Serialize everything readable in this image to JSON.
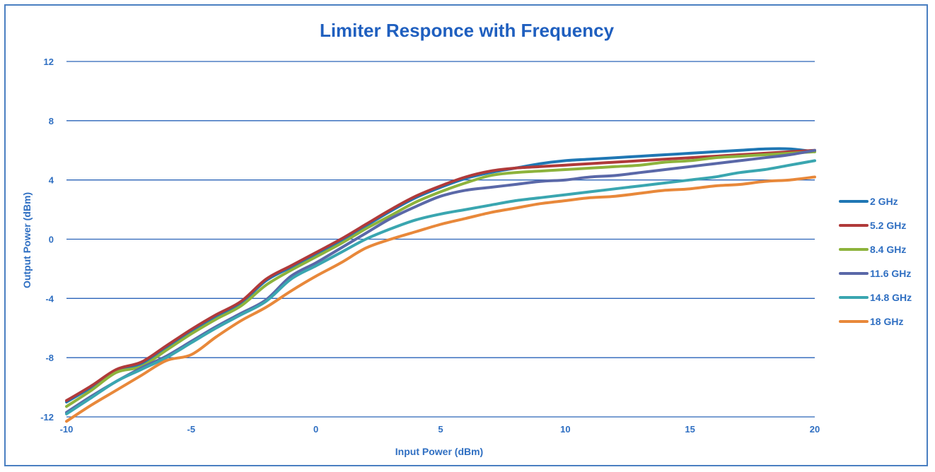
{
  "chart_data": {
    "type": "line",
    "title": "Limiter Responce with Frequency",
    "xlabel": "Input Power (dBm)",
    "ylabel": "Output Power (dBm)",
    "xlim": [
      -10,
      20
    ],
    "ylim": [
      -12,
      12
    ],
    "xticks": [
      -10,
      -5,
      0,
      5,
      10,
      15,
      20
    ],
    "yticks": [
      -12,
      -8,
      -4,
      0,
      4,
      8,
      12
    ],
    "x_tick_labels": [
      "-10",
      "-5",
      "0",
      "5",
      "10",
      "15",
      "20"
    ],
    "y_tick_labels": [
      "-12",
      "-8",
      "-4",
      "0",
      "4",
      "8",
      "12"
    ],
    "grid": "horizontal",
    "legend_position": "right",
    "x": [
      -10,
      -9,
      -8,
      -7,
      -6,
      -5,
      -4,
      -3,
      -2,
      -1,
      0,
      1,
      2,
      3,
      4,
      5,
      6,
      7,
      8,
      9,
      10,
      11,
      12,
      13,
      14,
      15,
      16,
      17,
      18,
      19,
      20
    ],
    "series": [
      {
        "name": "2 GHz",
        "color": "#1f77b4",
        "values": [
          -11.0,
          -10.0,
          -8.9,
          -8.4,
          -7.3,
          -6.2,
          -5.2,
          -4.3,
          -2.8,
          -1.9,
          -1.0,
          -0.1,
          0.9,
          1.9,
          2.8,
          3.5,
          4.1,
          4.5,
          4.8,
          5.1,
          5.3,
          5.4,
          5.5,
          5.6,
          5.7,
          5.8,
          5.9,
          6.0,
          6.1,
          6.1,
          5.9
        ]
      },
      {
        "name": "5.2 GHz",
        "color": "#b03a3a",
        "values": [
          -10.9,
          -9.9,
          -8.8,
          -8.3,
          -7.2,
          -6.1,
          -5.1,
          -4.2,
          -2.7,
          -1.8,
          -0.9,
          0.0,
          1.0,
          2.0,
          2.9,
          3.6,
          4.2,
          4.6,
          4.8,
          4.9,
          5.0,
          5.1,
          5.2,
          5.3,
          5.4,
          5.5,
          5.6,
          5.7,
          5.8,
          5.9,
          6.0
        ]
      },
      {
        "name": "8.4 GHz",
        "color": "#8db33c",
        "values": [
          -11.3,
          -10.2,
          -9.0,
          -8.6,
          -7.5,
          -6.4,
          -5.4,
          -4.5,
          -3.1,
          -2.1,
          -1.2,
          -0.3,
          0.7,
          1.6,
          2.5,
          3.2,
          3.8,
          4.3,
          4.5,
          4.6,
          4.7,
          4.8,
          4.9,
          5.0,
          5.2,
          5.3,
          5.5,
          5.6,
          5.7,
          5.8,
          5.9
        ]
      },
      {
        "name": "11.6 GHz",
        "color": "#5a68a8",
        "values": [
          -11.7,
          -10.6,
          -9.6,
          -8.7,
          -7.9,
          -6.9,
          -5.9,
          -5.0,
          -4.1,
          -2.5,
          -1.6,
          -0.6,
          0.4,
          1.4,
          2.2,
          2.9,
          3.3,
          3.5,
          3.7,
          3.9,
          4.0,
          4.2,
          4.3,
          4.5,
          4.7,
          4.9,
          5.1,
          5.3,
          5.5,
          5.7,
          6.0
        ]
      },
      {
        "name": "14.8 GHz",
        "color": "#3aa6b0",
        "values": [
          -11.8,
          -10.7,
          -9.6,
          -8.8,
          -8.0,
          -7.0,
          -6.0,
          -5.1,
          -4.2,
          -2.7,
          -1.8,
          -0.9,
          0.0,
          0.7,
          1.3,
          1.7,
          2.0,
          2.3,
          2.6,
          2.8,
          3.0,
          3.2,
          3.4,
          3.6,
          3.8,
          4.0,
          4.2,
          4.5,
          4.7,
          5.0,
          5.3
        ]
      },
      {
        "name": "18 GHz",
        "color": "#e8883a",
        "values": [
          -12.3,
          -11.2,
          -10.2,
          -9.2,
          -8.2,
          -7.8,
          -6.6,
          -5.5,
          -4.6,
          -3.5,
          -2.5,
          -1.6,
          -0.6,
          0.0,
          0.5,
          1.0,
          1.4,
          1.8,
          2.1,
          2.4,
          2.6,
          2.8,
          2.9,
          3.1,
          3.3,
          3.4,
          3.6,
          3.7,
          3.9,
          4.0,
          4.2
        ]
      }
    ]
  }
}
